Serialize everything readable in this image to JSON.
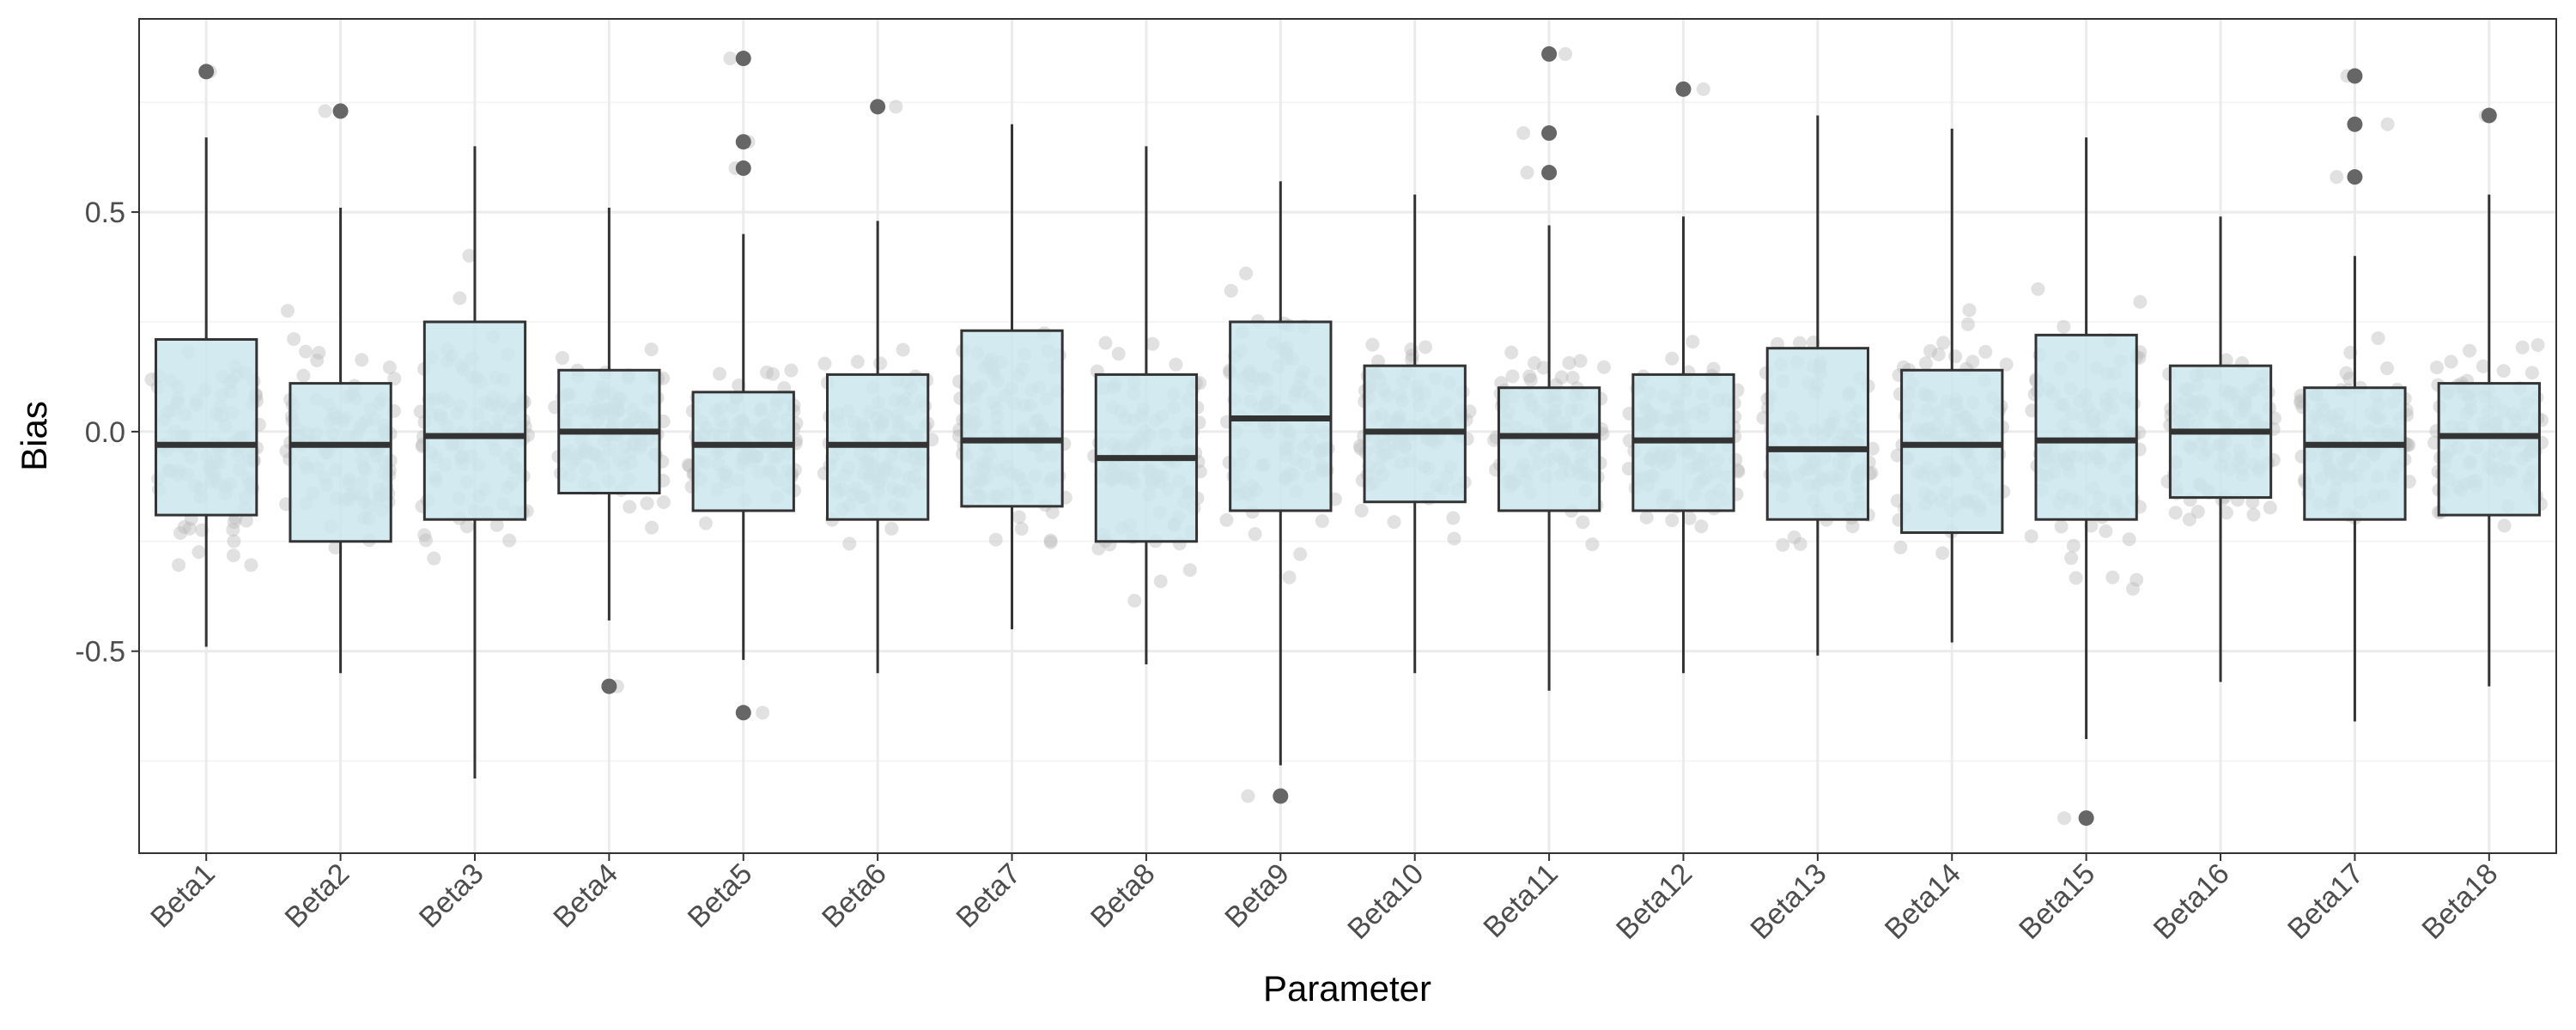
{
  "colors": {
    "panel_border": "#333333",
    "grid_major": "#ebebeb",
    "grid_minor": "#f5f5f5",
    "box_fill": "#cce6ee",
    "box_stroke": "#333333",
    "median": "#333333",
    "whisker": "#333333",
    "outlier": "#666666",
    "jitter": "#bdbdbd",
    "tick_text": "#4d4d4d"
  },
  "chart_data": {
    "type": "boxplot",
    "xlabel": "Parameter",
    "ylabel": "Bias",
    "ylim": [
      -0.96,
      0.94
    ],
    "yticks": [
      -0.5,
      0.0,
      0.5
    ],
    "ytick_labels": [
      "-0.5",
      "0.0",
      "0.5"
    ],
    "grid": true,
    "legend": "none",
    "categories": [
      "Beta1",
      "Beta2",
      "Beta3",
      "Beta4",
      "Beta5",
      "Beta6",
      "Beta7",
      "Beta8",
      "Beta9",
      "Beta10",
      "Beta11",
      "Beta12",
      "Beta13",
      "Beta14",
      "Beta15",
      "Beta16",
      "Beta17",
      "Beta18"
    ],
    "boxes": [
      {
        "q1": -0.19,
        "median": -0.03,
        "q3": 0.21,
        "whisker_low": -0.49,
        "whisker_high": 0.67,
        "outliers": [
          0.82
        ]
      },
      {
        "q1": -0.25,
        "median": -0.03,
        "q3": 0.11,
        "whisker_low": -0.55,
        "whisker_high": 0.51,
        "outliers": [
          0.73
        ]
      },
      {
        "q1": -0.2,
        "median": -0.01,
        "q3": 0.25,
        "whisker_low": -0.79,
        "whisker_high": 0.65,
        "outliers": []
      },
      {
        "q1": -0.14,
        "median": 0.0,
        "q3": 0.14,
        "whisker_low": -0.43,
        "whisker_high": 0.51,
        "outliers": [
          -0.58
        ]
      },
      {
        "q1": -0.18,
        "median": -0.03,
        "q3": 0.09,
        "whisker_low": -0.52,
        "whisker_high": 0.45,
        "outliers": [
          0.85,
          0.66,
          0.6,
          -0.64
        ]
      },
      {
        "q1": -0.2,
        "median": -0.03,
        "q3": 0.13,
        "whisker_low": -0.55,
        "whisker_high": 0.48,
        "outliers": [
          0.74
        ]
      },
      {
        "q1": -0.17,
        "median": -0.02,
        "q3": 0.23,
        "whisker_low": -0.45,
        "whisker_high": 0.7,
        "outliers": []
      },
      {
        "q1": -0.25,
        "median": -0.06,
        "q3": 0.13,
        "whisker_low": -0.53,
        "whisker_high": 0.65,
        "outliers": []
      },
      {
        "q1": -0.18,
        "median": 0.03,
        "q3": 0.25,
        "whisker_low": -0.76,
        "whisker_high": 0.57,
        "outliers": [
          -0.83
        ]
      },
      {
        "q1": -0.16,
        "median": 0.0,
        "q3": 0.15,
        "whisker_low": -0.55,
        "whisker_high": 0.54,
        "outliers": []
      },
      {
        "q1": -0.18,
        "median": -0.01,
        "q3": 0.1,
        "whisker_low": -0.59,
        "whisker_high": 0.47,
        "outliers": [
          0.86,
          0.68,
          0.59
        ]
      },
      {
        "q1": -0.18,
        "median": -0.02,
        "q3": 0.13,
        "whisker_low": -0.55,
        "whisker_high": 0.49,
        "outliers": [
          0.78
        ]
      },
      {
        "q1": -0.2,
        "median": -0.04,
        "q3": 0.19,
        "whisker_low": -0.51,
        "whisker_high": 0.72,
        "outliers": []
      },
      {
        "q1": -0.23,
        "median": -0.03,
        "q3": 0.14,
        "whisker_low": -0.48,
        "whisker_high": 0.69,
        "outliers": []
      },
      {
        "q1": -0.2,
        "median": -0.02,
        "q3": 0.22,
        "whisker_low": -0.7,
        "whisker_high": 0.67,
        "outliers": [
          -0.88
        ]
      },
      {
        "q1": -0.15,
        "median": 0.0,
        "q3": 0.15,
        "whisker_low": -0.57,
        "whisker_high": 0.49,
        "outliers": []
      },
      {
        "q1": -0.2,
        "median": -0.03,
        "q3": 0.1,
        "whisker_low": -0.66,
        "whisker_high": 0.4,
        "outliers": [
          0.81,
          0.7,
          0.58
        ]
      },
      {
        "q1": -0.19,
        "median": -0.01,
        "q3": 0.11,
        "whisker_low": -0.58,
        "whisker_high": 0.54,
        "outliers": [
          0.72
        ]
      }
    ]
  }
}
